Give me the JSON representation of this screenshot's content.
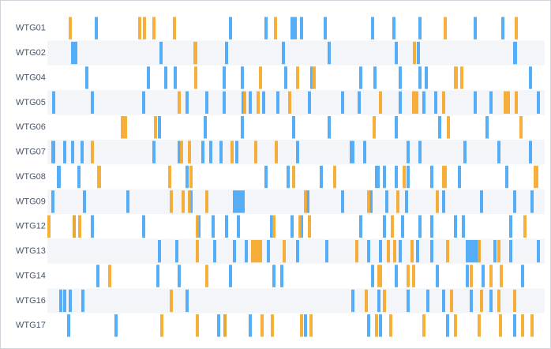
{
  "chart_data": {
    "type": "timeline",
    "categories": [
      "WTG01",
      "WTG02",
      "WTG04",
      "WTG05",
      "WTG06",
      "WTG07",
      "WTG08",
      "WTG09",
      "WTG12",
      "WTG13",
      "WTG14",
      "WTG16",
      "WTG17"
    ],
    "xlim": [
      0,
      630
    ],
    "series": [
      {
        "color": "#42a5f5",
        "values": [
          [
            [
              60,
              64
            ],
            [
              230,
              234
            ],
            [
              275,
              279
            ],
            [
              308,
              316
            ],
            [
              320,
              324
            ],
            [
              350,
              354
            ],
            [
              410,
              414
            ],
            [
              437,
              441
            ],
            [
              470,
              474
            ],
            [
              540,
              544
            ],
            [
              575,
              579
            ]
          ],
          [
            [
              30,
              38
            ],
            [
              142,
              146
            ],
            [
              225,
              229
            ],
            [
              297,
              301
            ],
            [
              355,
              359
            ],
            [
              440,
              444
            ],
            [
              468,
              472
            ],
            [
              590,
              595
            ]
          ],
          [
            [
              48,
              52
            ],
            [
              126,
              130
            ],
            [
              148,
              152
            ],
            [
              160,
              164
            ],
            [
              222,
              226
            ],
            [
              245,
              249
            ],
            [
              300,
              304
            ],
            [
              333,
              337
            ],
            [
              395,
              399
            ],
            [
              413,
              417
            ],
            [
              445,
              449
            ],
            [
              470,
              474
            ],
            [
              478,
              482
            ],
            [
              610,
              614
            ]
          ],
          [
            [
              6,
              10
            ],
            [
              55,
              59
            ],
            [
              120,
              124
            ],
            [
              175,
              179
            ],
            [
              200,
              204
            ],
            [
              222,
              226
            ],
            [
              246,
              250
            ],
            [
              255,
              259
            ],
            [
              272,
              276
            ],
            [
              290,
              294
            ],
            [
              330,
              334
            ],
            [
              372,
              376
            ],
            [
              393,
              397
            ],
            [
              445,
              449
            ],
            [
              475,
              479
            ],
            [
              490,
              494
            ],
            [
              540,
              544
            ],
            [
              560,
              564
            ],
            [
              620,
              624
            ]
          ],
          [
            [
              140,
              144
            ],
            [
              198,
              202
            ],
            [
              245,
              249
            ],
            [
              310,
              314
            ],
            [
              355,
              359
            ],
            [
              440,
              444
            ],
            [
              495,
              499
            ],
            [
              555,
              559
            ]
          ],
          [
            [
              5,
              10
            ],
            [
              20,
              24
            ],
            [
              30,
              34
            ],
            [
              42,
              46
            ],
            [
              133,
              137
            ],
            [
              165,
              169
            ],
            [
              195,
              199
            ],
            [
              205,
              209
            ],
            [
              218,
              222
            ],
            [
              238,
              242
            ],
            [
              315,
              319
            ],
            [
              383,
              389
            ],
            [
              400,
              404
            ],
            [
              455,
              459
            ],
            [
              470,
              474
            ],
            [
              527,
              531
            ],
            [
              570,
              574
            ],
            [
              610,
              614
            ]
          ],
          [
            [
              12,
              17
            ],
            [
              38,
              42
            ],
            [
              175,
              179
            ],
            [
              275,
              279
            ],
            [
              303,
              307
            ],
            [
              345,
              349
            ],
            [
              415,
              421
            ],
            [
              425,
              429
            ],
            [
              440,
              444
            ],
            [
              455,
              459
            ],
            [
              485,
              489
            ],
            [
              520,
              524
            ],
            [
              580,
              584
            ]
          ],
          [
            [
              5,
              9
            ],
            [
              45,
              49
            ],
            [
              100,
              104
            ],
            [
              180,
              184
            ],
            [
              235,
              250
            ],
            [
              328,
              332
            ],
            [
              372,
              376
            ],
            [
              408,
              412
            ],
            [
              428,
              432
            ],
            [
              453,
              457
            ],
            [
              500,
              504
            ],
            [
              548,
              552
            ],
            [
              590,
              594
            ],
            [
              612,
              616
            ]
          ],
          [
            [
              32,
              36
            ],
            [
              55,
              59
            ],
            [
              120,
              124
            ],
            [
              190,
              194
            ],
            [
              208,
              212
            ],
            [
              225,
              229
            ],
            [
              240,
              244
            ],
            [
              282,
              286
            ],
            [
              308,
              312
            ],
            [
              320,
              324
            ],
            [
              395,
              399
            ],
            [
              425,
              429
            ],
            [
              448,
              452
            ],
            [
              470,
              474
            ],
            [
              485,
              489
            ],
            [
              515,
              519
            ],
            [
              525,
              529
            ],
            [
              585,
              589
            ]
          ],
          [
            [
              140,
              144
            ],
            [
              162,
              166
            ],
            [
              210,
              214
            ],
            [
              235,
              239
            ],
            [
              250,
              254
            ],
            [
              278,
              282
            ],
            [
              315,
              319
            ],
            [
              352,
              356
            ],
            [
              405,
              409
            ],
            [
              420,
              424
            ],
            [
              445,
              449
            ],
            [
              467,
              471
            ],
            [
              485,
              489
            ],
            [
              530,
              548
            ],
            [
              565,
              569
            ],
            [
              585,
              589
            ],
            [
              620,
              624
            ]
          ],
          [
            [
              62,
              66
            ],
            [
              138,
              142
            ],
            [
              165,
              169
            ],
            [
              230,
              234
            ],
            [
              285,
              289
            ],
            [
              295,
              299
            ],
            [
              410,
              414
            ],
            [
              440,
              444
            ],
            [
              492,
              496
            ],
            [
              530,
              534
            ],
            [
              550,
              554
            ],
            [
              600,
              604
            ]
          ],
          [
            [
              15,
              19
            ],
            [
              20,
              24
            ],
            [
              27,
              31
            ],
            [
              43,
              47
            ],
            [
              175,
              179
            ],
            [
              385,
              389
            ],
            [
              418,
              422
            ],
            [
              455,
              459
            ],
            [
              480,
              484
            ],
            [
              500,
              504
            ],
            [
              535,
              539
            ],
            [
              560,
              564
            ]
          ],
          [
            [
              25,
              29
            ],
            [
              85,
              89
            ],
            [
              215,
              219
            ],
            [
              223,
              227
            ],
            [
              255,
              259
            ],
            [
              325,
              329
            ],
            [
              405,
              409
            ],
            [
              420,
              424
            ],
            [
              505,
              509
            ],
            [
              590,
              594
            ]
          ]
        ]
      },
      {
        "color": "#f5a623",
        "values": [
          [
            [
              27,
              31
            ],
            [
              115,
              119
            ],
            [
              121,
              125
            ],
            [
              133,
              137
            ],
            [
              159,
              163
            ],
            [
              287,
              291
            ],
            [
              502,
              506
            ],
            [
              592,
              596
            ]
          ],
          [
            [
              185,
              190
            ],
            [
              463,
              467
            ]
          ],
          [
            [
              186,
              190
            ],
            [
              268,
              272
            ],
            [
              315,
              319
            ],
            [
              335,
              340
            ],
            [
              515,
              520
            ],
            [
              523,
              527
            ]
          ],
          [
            [
              165,
              169
            ],
            [
              248,
              252
            ],
            [
              265,
              269
            ],
            [
              305,
              309
            ],
            [
              420,
              424
            ],
            [
              462,
              470
            ],
            [
              500,
              504
            ],
            [
              578,
              586
            ],
            [
              592,
              596
            ]
          ],
          [
            [
              93,
              101
            ],
            [
              135,
              139
            ],
            [
              412,
              416
            ],
            [
              506,
              510
            ],
            [
              598,
              602
            ]
          ],
          [
            [
              55,
              59
            ],
            [
              168,
              172
            ],
            [
              178,
              182
            ],
            [
              232,
              236
            ],
            [
              262,
              266
            ],
            [
              288,
              292
            ]
          ],
          [
            [
              63,
              68
            ],
            [
              153,
              157
            ],
            [
              180,
              184
            ],
            [
              310,
              314
            ],
            [
              362,
              366
            ],
            [
              450,
              454
            ],
            [
              500,
              506
            ],
            [
              616,
              622
            ]
          ],
          [
            [
              155,
              159
            ],
            [
              170,
              174
            ],
            [
              178,
              182
            ],
            [
              200,
              204
            ],
            [
              325,
              329
            ],
            [
              405,
              409
            ],
            [
              442,
              446
            ],
            [
              492,
              496
            ]
          ],
          [
            [
              0,
              4
            ],
            [
              32,
              36
            ],
            [
              39,
              43
            ],
            [
              188,
              192
            ],
            [
              285,
              289
            ],
            [
              318,
              322
            ],
            [
              330,
              334
            ],
            [
              435,
              439
            ],
            [
              603,
              607
            ]
          ],
          [
            [
              188,
              192
            ],
            [
              258,
              272
            ],
            [
              298,
              302
            ],
            [
              390,
              394
            ],
            [
              430,
              434
            ],
            [
              438,
              442
            ],
            [
              460,
              464
            ],
            [
              505,
              509
            ],
            [
              545,
              549
            ],
            [
              570,
              574
            ]
          ],
          [
            [
              77,
              81
            ],
            [
              200,
              204
            ],
            [
              418,
              424
            ],
            [
              455,
              459
            ],
            [
              462,
              466
            ],
            [
              535,
              539
            ],
            [
              560,
              564
            ],
            [
              573,
              577
            ]
          ],
          [
            [
              155,
              159
            ],
            [
              402,
              406
            ],
            [
              425,
              429
            ],
            [
              510,
              514
            ],
            [
              548,
              552
            ],
            [
              570,
              574
            ],
            [
              590,
              594
            ]
          ],
          [
            [
              143,
              147
            ],
            [
              188,
              192
            ],
            [
              223,
              227
            ],
            [
              270,
              274
            ],
            [
              283,
              287
            ],
            [
              320,
              324
            ],
            [
              332,
              336
            ],
            [
              415,
              419
            ],
            [
              433,
              437
            ],
            [
              475,
              479
            ],
            [
              515,
              519
            ],
            [
              545,
              549
            ],
            [
              572,
              576
            ],
            [
              600,
              604
            ],
            [
              612,
              616
            ]
          ]
        ]
      }
    ]
  }
}
